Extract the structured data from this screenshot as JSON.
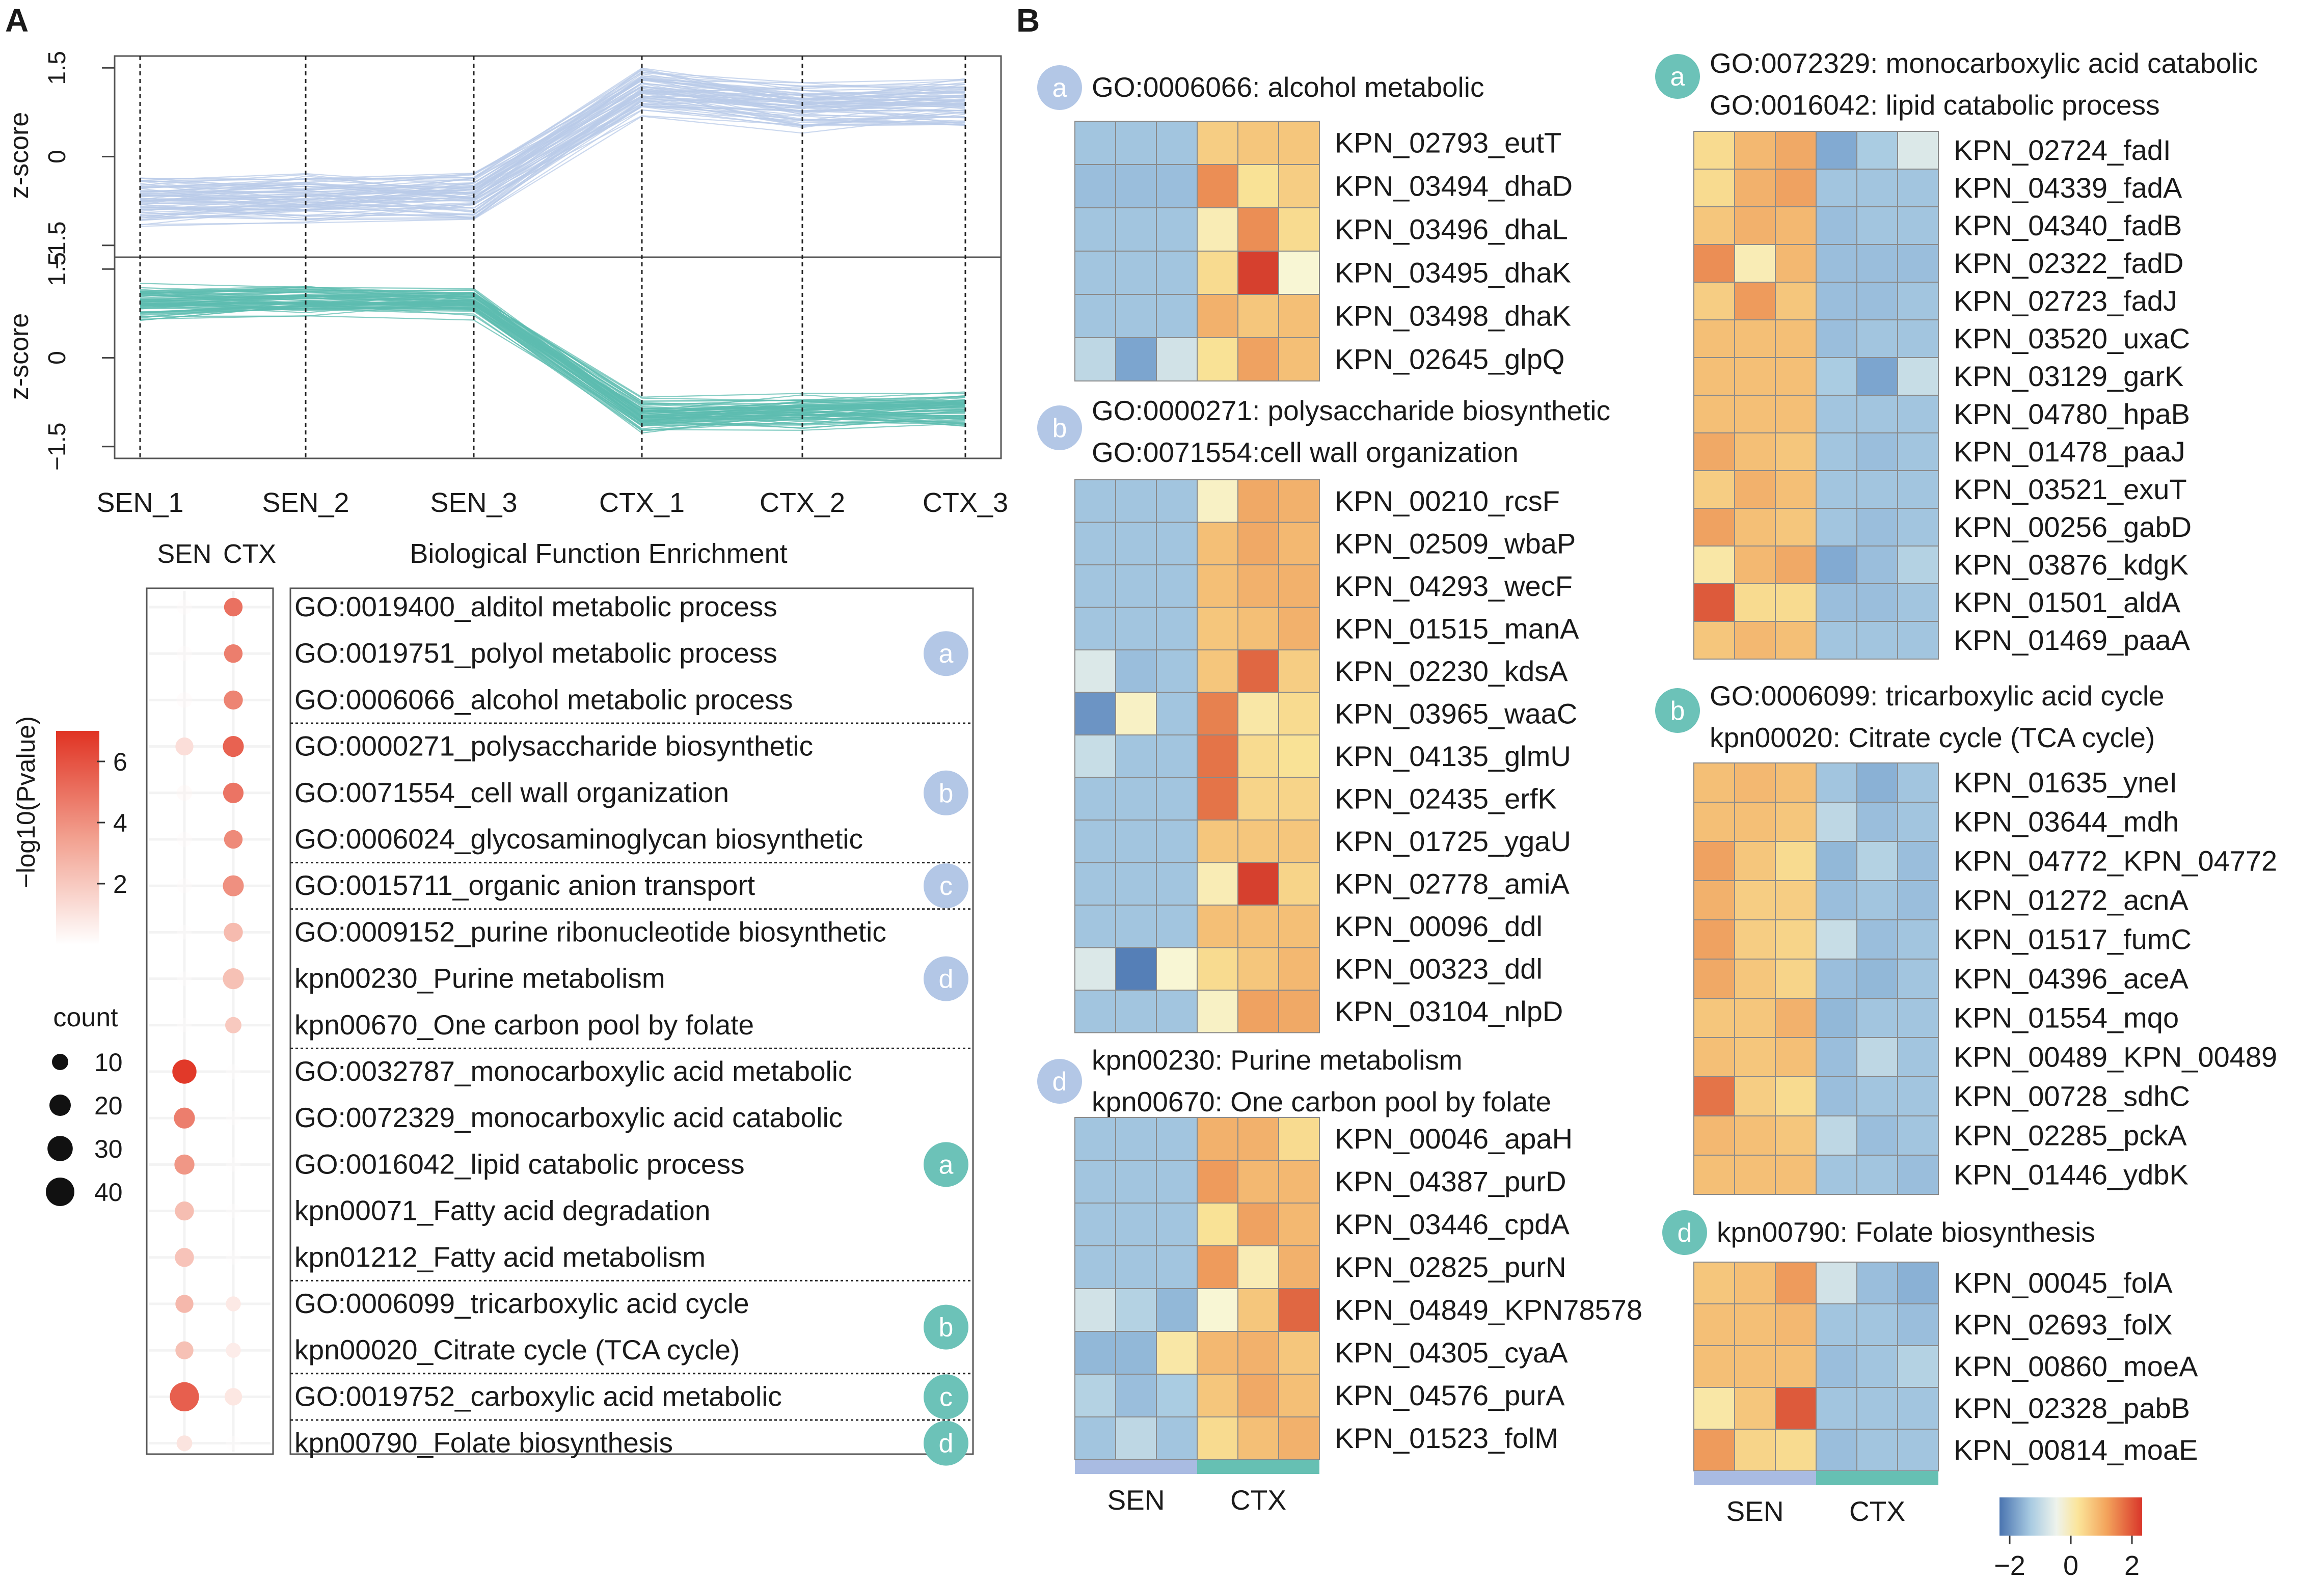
{
  "panels": {
    "A": "A",
    "B": "B"
  },
  "colors": {
    "cluster_up": "#b9cbe8",
    "cluster_down": "#5dbcb0",
    "badge_light": "#b3c7e6",
    "badge_teal": "#6cc2b8",
    "dot": "#e04a35",
    "sen_bar": "#a9bbe2",
    "ctx_bar": "#66c0b3"
  },
  "chart_data": [
    {
      "type": "line",
      "id": "zscore_profiles",
      "categories": [
        "SEN_1",
        "SEN_2",
        "SEN_3",
        "CTX_1",
        "CTX_2",
        "CTX_3"
      ],
      "ylabel": "z-score",
      "yticks": [
        "1.5",
        "0",
        "−1.5"
      ],
      "ylim": [
        -1.7,
        1.7
      ],
      "series": [
        {
          "name": "cluster_up",
          "mean": [
            -0.75,
            -0.7,
            -0.65,
            1.1,
            0.85,
            0.9
          ]
        },
        {
          "name": "cluster_down",
          "mean": [
            0.95,
            1.0,
            0.95,
            -0.95,
            -0.9,
            -0.85
          ]
        }
      ]
    },
    {
      "type": "scatter",
      "id": "enrichment_dots",
      "title": "Biological Function Enrichment",
      "columns": [
        "SEN",
        "CTX"
      ],
      "legend": {
        "color_title": "−log10(Pvalue)",
        "color_ticks": [
          "6",
          "4",
          "2"
        ],
        "color_range": [
          0,
          7
        ],
        "size_title": "count",
        "size_values": [
          10,
          20,
          30,
          40
        ]
      },
      "terms": [
        {
          "label": "GO:0019400_alditol metabolic process",
          "group": "a",
          "badge": "light",
          "sen": {
            "p": 0.2,
            "count": 8
          },
          "ctx": {
            "p": 5.0,
            "count": 14
          }
        },
        {
          "label": "GO:0019751_polyol metabolic process",
          "group": "a",
          "badge": "light",
          "sen": {
            "p": 0.2,
            "count": 8
          },
          "ctx": {
            "p": 4.6,
            "count": 14
          }
        },
        {
          "label": "GO:0006066_alcohol metabolic process",
          "group": "a",
          "badge": "light",
          "sen": {
            "p": 0.3,
            "count": 9
          },
          "ctx": {
            "p": 4.4,
            "count": 15
          }
        },
        {
          "label": "GO:0000271_polysaccharide biosynthetic",
          "group": "b",
          "badge": "light",
          "sen": {
            "p": 1.2,
            "count": 13
          },
          "ctx": {
            "p": 5.5,
            "count": 19
          }
        },
        {
          "label": "GO:0071554_cell wall organization",
          "group": "b",
          "badge": "light",
          "sen": {
            "p": 0.4,
            "count": 9
          },
          "ctx": {
            "p": 4.9,
            "count": 18
          }
        },
        {
          "label": "GO:0006024_glycosaminoglycan biosynthetic",
          "group": "b",
          "badge": "light",
          "sen": {
            "p": 0.2,
            "count": 8
          },
          "ctx": {
            "p": 4.2,
            "count": 14
          }
        },
        {
          "label": "GO:0015711_organic anion transport",
          "group": "c",
          "badge": "light",
          "sen": {
            "p": 0.2,
            "count": 8
          },
          "ctx": {
            "p": 4.0,
            "count": 19
          }
        },
        {
          "label": "GO:0009152_purine ribonucleotide biosynthetic",
          "group": "d",
          "badge": "light",
          "sen": {
            "p": 0.1,
            "count": 7
          },
          "ctx": {
            "p": 2.5,
            "count": 15
          }
        },
        {
          "label": "kpn00230_Purine metabolism",
          "group": "d",
          "badge": "light",
          "sen": {
            "p": 0.1,
            "count": 7
          },
          "ctx": {
            "p": 2.3,
            "count": 19
          }
        },
        {
          "label": "kpn00670_One carbon pool by folate",
          "group": "d",
          "badge": "light",
          "sen": {
            "p": 0.1,
            "count": 7
          },
          "ctx": {
            "p": 2.0,
            "count": 10
          }
        },
        {
          "label": "GO:0032787_monocarboxylic acid metabolic",
          "group": "a",
          "badge": "teal",
          "sen": {
            "p": 6.8,
            "count": 27
          },
          "ctx": {
            "p": 0.1,
            "count": 7
          }
        },
        {
          "label": "GO:0072329_monocarboxylic acid catabolic",
          "group": "a",
          "badge": "teal",
          "sen": {
            "p": 4.6,
            "count": 19
          },
          "ctx": {
            "p": 0.1,
            "count": 7
          }
        },
        {
          "label": "GO:0016042_lipid catabolic process",
          "group": "a",
          "badge": "teal",
          "sen": {
            "p": 3.8,
            "count": 17
          },
          "ctx": {
            "p": 0.1,
            "count": 7
          }
        },
        {
          "label": "kpn00071_Fatty acid degradation",
          "group": "a",
          "badge": "teal",
          "sen": {
            "p": 2.4,
            "count": 15
          },
          "ctx": {
            "p": 0.1,
            "count": 7
          }
        },
        {
          "label": "kpn01212_Fatty acid metabolism",
          "group": "a",
          "badge": "teal",
          "sen": {
            "p": 2.2,
            "count": 15
          },
          "ctx": {
            "p": 0.1,
            "count": 7
          }
        },
        {
          "label": "GO:0006099_tricarboxylic acid cycle",
          "group": "b",
          "badge": "teal",
          "sen": {
            "p": 2.6,
            "count": 13
          },
          "ctx": {
            "p": 0.8,
            "count": 8
          }
        },
        {
          "label": "kpn00020_Citrate cycle (TCA cycle)",
          "group": "b",
          "badge": "teal",
          "sen": {
            "p": 2.3,
            "count": 13
          },
          "ctx": {
            "p": 0.7,
            "count": 8
          }
        },
        {
          "label": "GO:0019752_carboxylic acid metabolic",
          "group": "c",
          "badge": "teal",
          "sen": {
            "p": 5.6,
            "count": 42
          },
          "ctx": {
            "p": 0.9,
            "count": 12
          }
        },
        {
          "label": "kpn00790_Folate biosynthesis",
          "group": "d",
          "badge": "teal",
          "sen": {
            "p": 1.0,
            "count": 9
          },
          "ctx": {
            "p": 0.1,
            "count": 7
          }
        }
      ]
    },
    {
      "type": "heatmap",
      "id": "heatmaps",
      "columns": [
        "SEN",
        "CTX"
      ],
      "colorbar": {
        "ticks": [
          "−2",
          "0",
          "2"
        ],
        "range": [
          -2,
          2
        ]
      },
      "panels": [
        {
          "badge": "a",
          "badge_style": "light",
          "titles": [
            "GO:0006066: alcohol metabolic"
          ],
          "show_column_labels": false,
          "genes": [
            "KPN_02793_eutT",
            "KPN_03494_dhaD",
            "KPN_03496_dhaL",
            "KPN_03495_dhaK",
            "KPN_03498_dhaK",
            "KPN_02645_glpQ"
          ],
          "values": [
            [
              -0.8,
              -0.8,
              -0.8,
              0.8,
              0.9,
              0.9
            ],
            [
              -0.9,
              -0.9,
              -0.9,
              1.6,
              0.5,
              0.8
            ],
            [
              -0.8,
              -0.8,
              -0.8,
              0.3,
              1.6,
              0.6
            ],
            [
              -0.8,
              -0.8,
              -0.8,
              0.6,
              2.2,
              0.1
            ],
            [
              -0.8,
              -0.8,
              -0.8,
              1.2,
              0.9,
              1.0
            ],
            [
              -0.5,
              -1.3,
              -0.3,
              0.5,
              1.4,
              1.0
            ]
          ]
        },
        {
          "badge": "b",
          "badge_style": "light",
          "titles": [
            "GO:0000271: polysaccharide biosynthetic",
            "GO:0071554:cell wall organization"
          ],
          "show_column_labels": false,
          "genes": [
            "KPN_00210_rcsF",
            "KPN_02509_wbaP",
            "KPN_04293_wecF",
            "KPN_01515_manA",
            "KPN_02230_kdsA",
            "KPN_03965_waaC",
            "KPN_04135_glmU",
            "KPN_02435_erfK",
            "KPN_01725_ygaU",
            "KPN_02778_amiA",
            "KPN_00096_ddl",
            "KPN_00323_ddl",
            "KPN_03104_nlpD"
          ],
          "values": [
            [
              -0.8,
              -0.8,
              -0.8,
              0.2,
              1.3,
              1.2
            ],
            [
              -0.8,
              -0.8,
              -0.8,
              1.0,
              1.3,
              1.1
            ],
            [
              -0.8,
              -0.8,
              -0.8,
              1.0,
              1.2,
              1.2
            ],
            [
              -0.8,
              -0.8,
              -0.8,
              0.9,
              1.0,
              1.2
            ],
            [
              -0.2,
              -0.9,
              -0.8,
              0.9,
              1.9,
              0.8
            ],
            [
              -1.6,
              0.2,
              -0.8,
              1.7,
              0.4,
              0.6
            ],
            [
              -0.4,
              -0.8,
              -0.8,
              1.8,
              0.6,
              0.5
            ],
            [
              -0.8,
              -0.8,
              -0.8,
              1.8,
              0.7,
              0.7
            ],
            [
              -0.8,
              -0.8,
              -0.8,
              0.9,
              0.9,
              0.9
            ],
            [
              -0.8,
              -0.8,
              -0.8,
              0.3,
              2.2,
              0.7
            ],
            [
              -0.8,
              -0.8,
              -0.8,
              1.0,
              1.0,
              1.0
            ],
            [
              -0.2,
              -2.0,
              0.1,
              0.6,
              0.9,
              1.1
            ],
            [
              -0.8,
              -0.8,
              -0.8,
              0.2,
              1.4,
              1.3
            ]
          ]
        },
        {
          "badge": "d",
          "badge_style": "light",
          "titles": [
            "kpn00230: Purine metabolism",
            "kpn00670: One carbon pool by folate"
          ],
          "show_column_labels": true,
          "genes": [
            "KPN_00046_apaH",
            "KPN_04387_purD",
            "KPN_03446_cpdA",
            "KPN_02825_purN",
            "KPN_04849_KPN78578",
            "KPN_04305_cyaA",
            "KPN_04576_purA",
            "KPN_01523_folM"
          ],
          "values": [
            [
              -0.8,
              -0.8,
              -0.8,
              1.2,
              1.2,
              0.6
            ],
            [
              -0.8,
              -0.8,
              -0.8,
              1.5,
              1.1,
              1.1
            ],
            [
              -0.8,
              -0.8,
              -0.8,
              0.5,
              1.4,
              1.1
            ],
            [
              -0.8,
              -0.8,
              -0.8,
              1.5,
              0.3,
              1.2
            ],
            [
              -0.3,
              -0.6,
              -1.0,
              0.1,
              0.9,
              1.9
            ],
            [
              -1.0,
              -1.0,
              0.4,
              1.1,
              1.2,
              0.9
            ],
            [
              -0.6,
              -0.9,
              -0.7,
              0.9,
              1.3,
              1.0
            ],
            [
              -0.8,
              -0.5,
              -0.8,
              0.6,
              1.0,
              1.2
            ]
          ]
        },
        {
          "badge": "a",
          "badge_style": "teal",
          "titles": [
            "GO:0072329: monocarboxylic acid catabolic",
            "GO:0016042: lipid catabolic process"
          ],
          "show_column_labels": false,
          "genes": [
            "KPN_02724_fadI",
            "KPN_04339_fadA",
            "KPN_04340_fadB",
            "KPN_02322_fadD",
            "KPN_02723_fadJ",
            "KPN_03520_uxaC",
            "KPN_03129_garK",
            "KPN_04780_hpaB",
            "KPN_01478_paaJ",
            "KPN_03521_exuT",
            "KPN_00256_gabD",
            "KPN_03876_kdgK",
            "KPN_01501_aldA",
            "KPN_01469_paaA"
          ],
          "values": [
            [
              0.6,
              1.1,
              1.3,
              -1.2,
              -0.7,
              -0.2
            ],
            [
              0.6,
              1.2,
              1.4,
              -0.8,
              -0.8,
              -0.8
            ],
            [
              0.9,
              1.2,
              1.1,
              -0.9,
              -0.8,
              -0.8
            ],
            [
              1.6,
              0.3,
              1.1,
              -0.9,
              -0.9,
              -0.9
            ],
            [
              0.8,
              1.5,
              0.9,
              -0.9,
              -0.9,
              -0.8
            ],
            [
              1.0,
              1.0,
              1.0,
              -0.9,
              -0.8,
              -0.8
            ],
            [
              1.0,
              1.0,
              1.0,
              -0.7,
              -1.3,
              -0.4
            ],
            [
              1.0,
              1.0,
              1.0,
              -0.8,
              -0.8,
              -0.8
            ],
            [
              1.3,
              1.0,
              0.9,
              -0.8,
              -0.9,
              -0.8
            ],
            [
              0.8,
              1.2,
              1.0,
              -0.8,
              -0.8,
              -0.8
            ],
            [
              1.4,
              1.0,
              0.9,
              -0.8,
              -0.9,
              -0.8
            ],
            [
              0.4,
              1.1,
              1.3,
              -1.2,
              -0.9,
              -0.6
            ],
            [
              2.0,
              0.6,
              0.6,
              -0.9,
              -0.9,
              -0.8
            ],
            [
              0.9,
              1.1,
              1.0,
              -0.8,
              -0.8,
              -0.8
            ]
          ]
        },
        {
          "badge": "b",
          "badge_style": "teal",
          "titles": [
            "GO:0006099: tricarboxylic acid cycle",
            "kpn00020: Citrate cycle (TCA cycle)"
          ],
          "show_column_labels": false,
          "genes": [
            "KPN_01635_yneI",
            "KPN_03644_mdh",
            "KPN_04772_KPN_04772",
            "KPN_01272_acnA",
            "KPN_01517_fumC",
            "KPN_04396_aceA",
            "KPN_01554_mqo",
            "KPN_00489_KPN_00489",
            "KPN_00728_sdhC",
            "KPN_02285_pckA",
            "KPN_01446_ydbK"
          ],
          "values": [
            [
              1.0,
              1.1,
              1.0,
              -0.8,
              -1.1,
              -0.8
            ],
            [
              1.0,
              1.0,
              0.9,
              -0.5,
              -0.9,
              -0.8
            ],
            [
              1.4,
              0.9,
              0.6,
              -1.0,
              -0.6,
              -0.9
            ],
            [
              1.2,
              0.8,
              0.8,
              -0.9,
              -0.8,
              -0.9
            ],
            [
              1.4,
              0.8,
              0.7,
              -0.4,
              -0.9,
              -0.8
            ],
            [
              1.3,
              0.9,
              0.7,
              -0.9,
              -1.0,
              -0.8
            ],
            [
              0.9,
              0.9,
              1.2,
              -1.0,
              -0.8,
              -0.8
            ],
            [
              1.0,
              0.9,
              1.0,
              -0.9,
              -0.5,
              -0.8
            ],
            [
              1.8,
              0.8,
              0.6,
              -0.9,
              -0.8,
              -0.8
            ],
            [
              1.1,
              1.0,
              0.9,
              -0.5,
              -0.9,
              -0.8
            ],
            [
              1.0,
              1.0,
              1.0,
              -0.8,
              -0.8,
              -0.9
            ]
          ]
        },
        {
          "badge": "d",
          "badge_style": "teal",
          "titles": [
            "kpn00790:   Folate biosynthesis"
          ],
          "show_column_labels": true,
          "genes": [
            "KPN_00045_folA",
            "KPN_02693_folX",
            "KPN_00860_moeA",
            "KPN_02328_pabB",
            "KPN_00814_moaE"
          ],
          "values": [
            [
              0.9,
              1.0,
              1.5,
              -0.3,
              -0.9,
              -1.1
            ],
            [
              1.0,
              1.0,
              1.1,
              -0.8,
              -0.8,
              -0.9
            ],
            [
              1.0,
              1.0,
              1.0,
              -0.9,
              -0.8,
              -0.6
            ],
            [
              0.4,
              0.9,
              2.0,
              -0.8,
              -0.8,
              -0.8
            ],
            [
              1.5,
              0.7,
              0.6,
              -0.9,
              -0.8,
              -0.8
            ]
          ]
        }
      ]
    }
  ]
}
